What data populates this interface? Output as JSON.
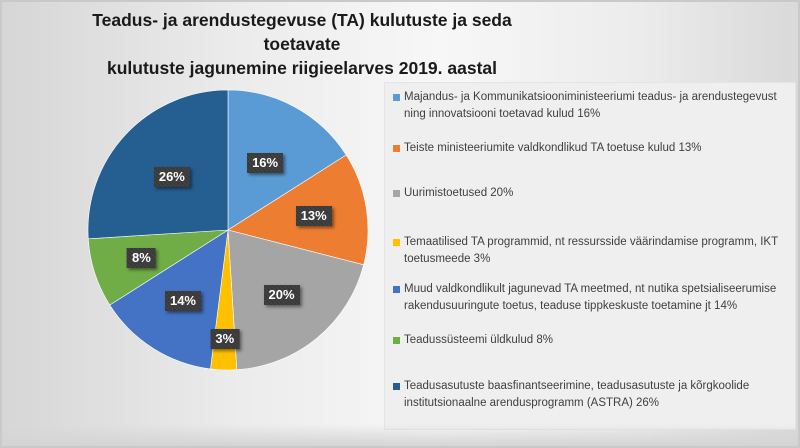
{
  "title": {
    "line1": "Teadus- ja arendustegevuse (TA) kulutuste ja seda toetavate",
    "line2": "kulutuste jagunemine riigieelarves 2019. aastal"
  },
  "chart_data": {
    "type": "pie",
    "title": "Teadus- ja arendustegevuse (TA) kulutuste ja seda toetavate kulutuste jagunemine riigieelarves 2019. aastal",
    "start_angle": "12 o'clock, clockwise",
    "legend_position": "right",
    "categories": [
      "Majandus- ja Kommunikatsiooniministeeriumi teadus- ja arendustegevust ning innovatsiooni toetavad kulud",
      "Teiste ministeeriumite valdkondlikud TA toetuse kulud",
      "Uurimistoetused",
      "Temaatilised TA programmid, nt ressursside väärindamise programm, IKT toetusmeede",
      "Muud valdkondlikult jagunevad TA meetmed, nt nutika spetsialiseerumise rakendusuuringute toetus, teaduse tippkeskuste toetamine jt",
      "Teadussüsteemi üldkulud",
      "Teadusasutuste baasfinantseerimine, teadusasutuste ja kõrgkoolide institutsionaalne arendusprogramm (ASTRA)"
    ],
    "values": [
      16,
      13,
      20,
      3,
      14,
      8,
      26
    ],
    "data_labels": [
      "16%",
      "13%",
      "20%",
      "3%",
      "14%",
      "8%",
      "26%"
    ],
    "colors": [
      "#5B9BD5",
      "#ED7D31",
      "#A5A5A5",
      "#FFC000",
      "#4472C4",
      "#70AD47",
      "#255E91"
    ]
  },
  "legend": {
    "items": [
      {
        "text": "Majandus- ja Kommunikatsiooniministeeriumi teadus- ja arendustegevust ning innovatsiooni toetavad kulud 16%",
        "color": "#5B9BD5"
      },
      {
        "text": "Teiste ministeeriumite valdkondlikud TA toetuse kulud 13%",
        "color": "#ED7D31"
      },
      {
        "text": "Uurimistoetused 20%",
        "color": "#A5A5A5"
      },
      {
        "text": "Temaatilised TA programmid, nt ressursside väärindamise programm, IKT toetusmeede 3%",
        "color": "#FFC000"
      },
      {
        "text": "Muud valdkondlikult jagunevad TA meetmed, nt nutika spetsialiseerumise rakendusuuringute toetus, teaduse tippkeskuste toetamine jt 14%",
        "color": "#4472C4"
      },
      {
        "text": "Teadussüsteemi üldkulud 8%",
        "color": "#70AD47"
      },
      {
        "text": "Teadusasutuste baasfinantseerimine, teadusasutuste ja kõrgkoolide institutsionaalne arendusprogramm (ASTRA) 26%",
        "color": "#255E91"
      }
    ]
  }
}
